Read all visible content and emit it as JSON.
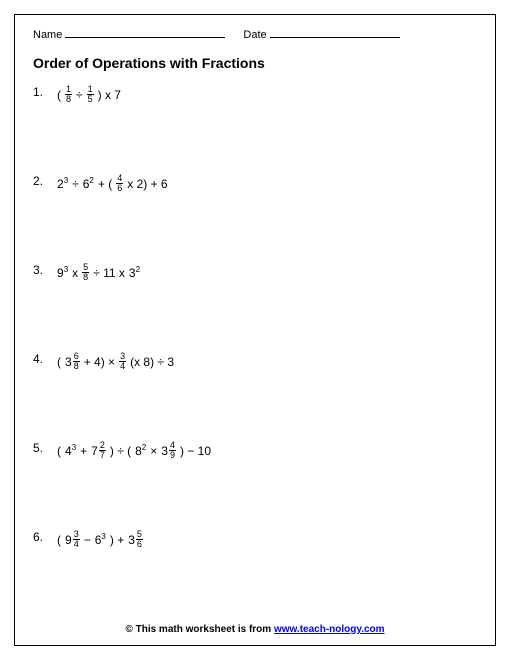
{
  "header": {
    "name_label": "Name",
    "date_label": "Date",
    "name_line_width": 160,
    "date_line_width": 130
  },
  "title": "Order of Operations with Fractions",
  "problems": [
    {
      "num": "1.",
      "tokens": [
        {
          "t": "txt",
          "v": "("
        },
        {
          "t": "frac",
          "n": "1",
          "d": "8"
        },
        {
          "t": "txt",
          "v": " ÷ "
        },
        {
          "t": "frac",
          "n": "1",
          "d": "5"
        },
        {
          "t": "txt",
          "v": ") x 7"
        }
      ]
    },
    {
      "num": "2.",
      "tokens": [
        {
          "t": "pow",
          "b": "2",
          "e": "3"
        },
        {
          "t": "txt",
          "v": " ÷ "
        },
        {
          "t": "pow",
          "b": "6",
          "e": "2"
        },
        {
          "t": "txt",
          "v": " + ( "
        },
        {
          "t": "frac",
          "n": "4",
          "d": "6"
        },
        {
          "t": "txt",
          "v": "x 2) + 6"
        }
      ]
    },
    {
      "num": "3.",
      "tokens": [
        {
          "t": "pow",
          "b": "9",
          "e": "3"
        },
        {
          "t": "txt",
          "v": " x "
        },
        {
          "t": "frac",
          "n": "5",
          "d": "8"
        },
        {
          "t": "txt",
          "v": "  ÷ 11 x "
        },
        {
          "t": "pow",
          "b": "3",
          "e": "2"
        }
      ]
    },
    {
      "num": "4.",
      "tokens": [
        {
          "t": "txt",
          "v": "("
        },
        {
          "t": "mix",
          "w": "3",
          "n": "6",
          "d": "8"
        },
        {
          "t": "txt",
          "v": " + 4) × "
        },
        {
          "t": "frac",
          "n": "3",
          "d": "4"
        },
        {
          "t": "txt",
          "v": " (x 8) ÷ 3"
        }
      ]
    },
    {
      "num": "5.",
      "tokens": [
        {
          "t": "txt",
          "v": "("
        },
        {
          "t": "pow",
          "b": "4",
          "e": "3"
        },
        {
          "t": "txt",
          "v": " + "
        },
        {
          "t": "mix",
          "w": "7",
          "n": "2",
          "d": "7"
        },
        {
          "t": "txt",
          "v": ") ÷ ("
        },
        {
          "t": "pow",
          "b": "8",
          "e": "2"
        },
        {
          "t": "txt",
          "v": " × "
        },
        {
          "t": "mix",
          "w": "3",
          "n": "4",
          "d": "9"
        },
        {
          "t": "txt",
          "v": ") − 10"
        }
      ]
    },
    {
      "num": "6.",
      "tokens": [
        {
          "t": "txt",
          "v": "("
        },
        {
          "t": "mix",
          "w": "9",
          "n": "3",
          "d": "4"
        },
        {
          "t": "txt",
          "v": "  − "
        },
        {
          "t": "pow",
          "b": "6",
          "e": "3"
        },
        {
          "t": "txt",
          "v": ") + "
        },
        {
          "t": "mix",
          "w": "3",
          "n": "5",
          "d": "6"
        }
      ]
    }
  ],
  "footer": {
    "prefix": "© This math worksheet is from ",
    "link_text": "www.teach-nology.com"
  }
}
